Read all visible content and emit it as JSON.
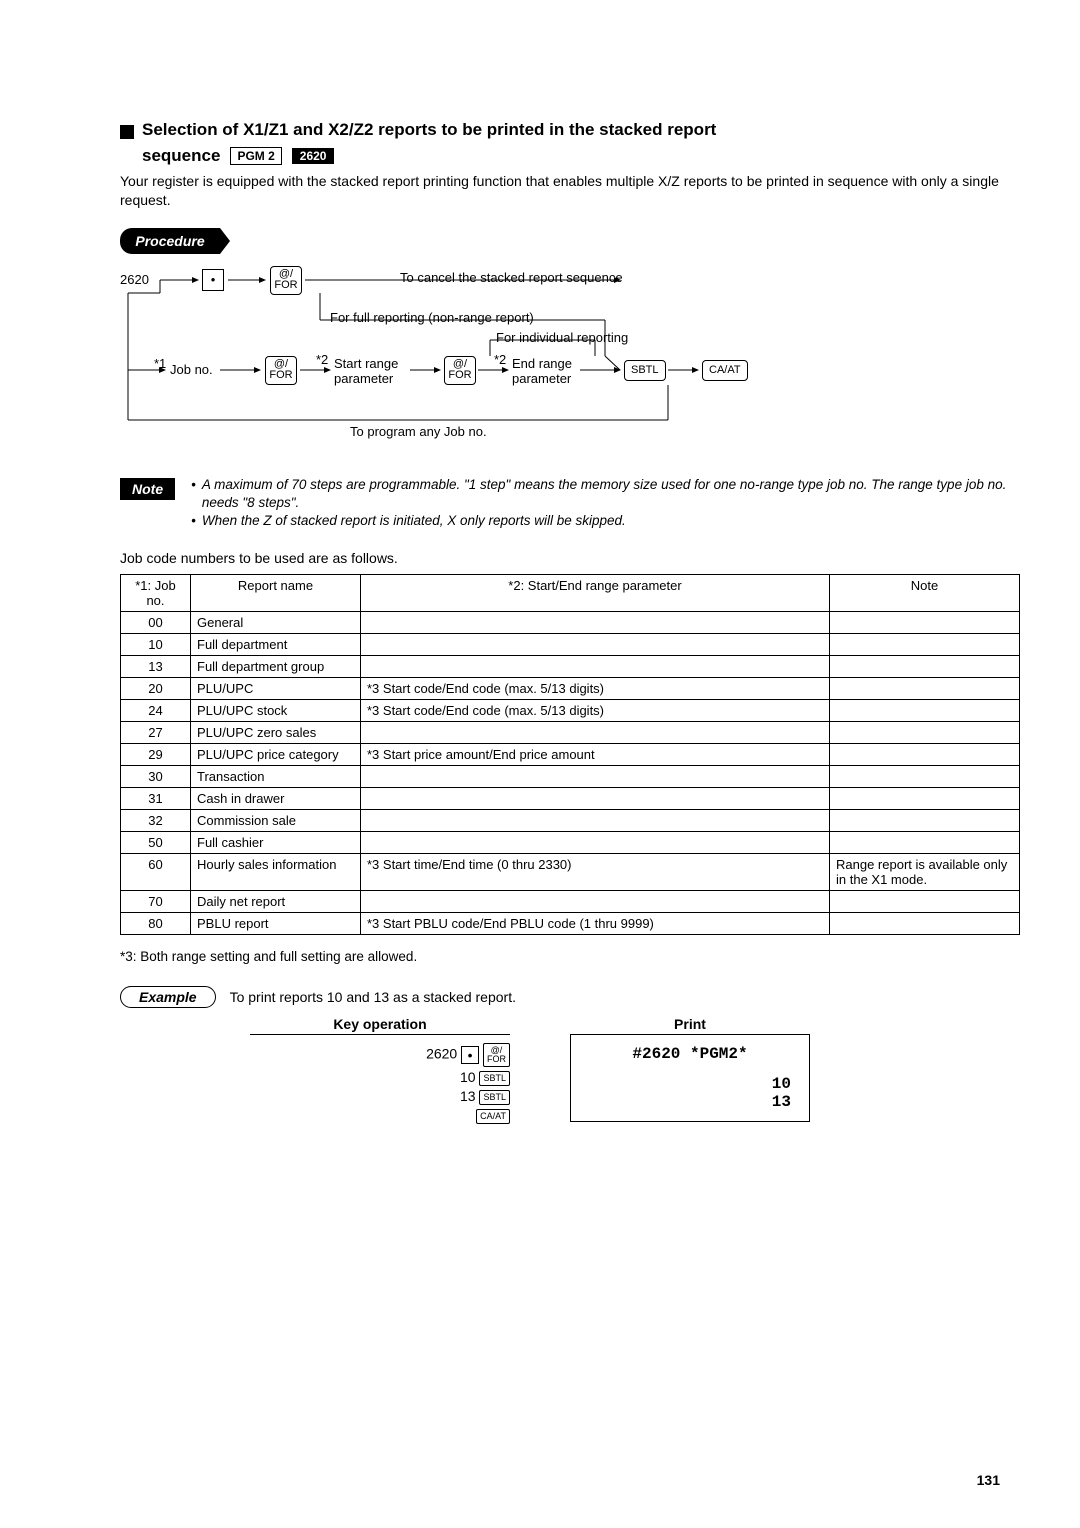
{
  "heading": {
    "title_line1": "Selection of X1/Z1 and X2/Z2 reports to be printed in the stacked report",
    "title_line2_prefix": "sequence",
    "badge_pgm": "PGM 2",
    "badge_code": "2620"
  },
  "intro": "Your register is equipped with the stacked report printing function that enables multiple X/Z reports to be printed in sequence with only a single request.",
  "procedure_label": "Procedure",
  "diagram": {
    "code": "2620",
    "dot": "•",
    "key_for_top": "@/",
    "key_for_bot": "FOR",
    "cancel_text": "To cancel the stacked report sequence",
    "full_reporting": "For full reporting (non-range report)",
    "individual": "For individual reporting",
    "job_no_label": "Job no.",
    "star1": "*1",
    "star2a": "*2",
    "start_range_top": "Start range",
    "start_range_bot": "parameter",
    "star2b": "*2",
    "end_range_top": "End range",
    "end_range_bot": "parameter",
    "key_sbtl": "SBTL",
    "key_caat": "CA/AT",
    "program_any": "To program any Job no."
  },
  "note_label": "Note",
  "notes": [
    "A maximum of 70 steps are programmable. \"1 step\" means the memory size used for one no-range type job no. The range type job no. needs \"8 steps\".",
    "When the Z of stacked report is initiated, X only reports will be skipped."
  ],
  "table_intro": "Job code numbers to be used are as follows.",
  "table": {
    "headers": [
      "*1: Job no.",
      "Report name",
      "*2: Start/End range parameter",
      "Note"
    ],
    "rows": [
      [
        "00",
        "General",
        "",
        ""
      ],
      [
        "10",
        "Full department",
        "",
        ""
      ],
      [
        "13",
        "Full department group",
        "",
        ""
      ],
      [
        "20",
        "PLU/UPC",
        "*3 Start code/End code (max. 5/13 digits)",
        ""
      ],
      [
        "24",
        "PLU/UPC stock",
        "*3 Start code/End code (max. 5/13 digits)",
        ""
      ],
      [
        "27",
        "PLU/UPC zero sales",
        "",
        ""
      ],
      [
        "29",
        "PLU/UPC price category",
        "*3 Start price amount/End price amount",
        ""
      ],
      [
        "30",
        "Transaction",
        "",
        ""
      ],
      [
        "31",
        "Cash in drawer",
        "",
        ""
      ],
      [
        "32",
        "Commission sale",
        "",
        ""
      ],
      [
        "50",
        "Full cashier",
        "",
        ""
      ],
      [
        "60",
        "Hourly sales information",
        "*3 Start time/End time (0 thru 2330)",
        "Range report is available only in the X1 mode."
      ],
      [
        "70",
        "Daily net report",
        "",
        ""
      ],
      [
        "80",
        "PBLU report",
        "*3 Start PBLU code/End PBLU code (1 thru 9999)",
        ""
      ]
    ]
  },
  "footnote": "*3:  Both range setting and full setting are allowed.",
  "example_label": "Example",
  "example_caption": "To print reports 10 and 13 as a stacked report.",
  "example_headers": {
    "keyop": "Key operation",
    "print": "Print"
  },
  "example_keyop": {
    "line1_num": "2620",
    "dot": "•",
    "for_top": "@/",
    "for_bot": "FOR",
    "line2_num": "10",
    "sbtl": "SBTL",
    "line3_num": "13",
    "caat": "CA/AT"
  },
  "example_print": {
    "header": "#2620 *PGM2*",
    "r1": "10",
    "r2": "13"
  },
  "page_number": "131"
}
